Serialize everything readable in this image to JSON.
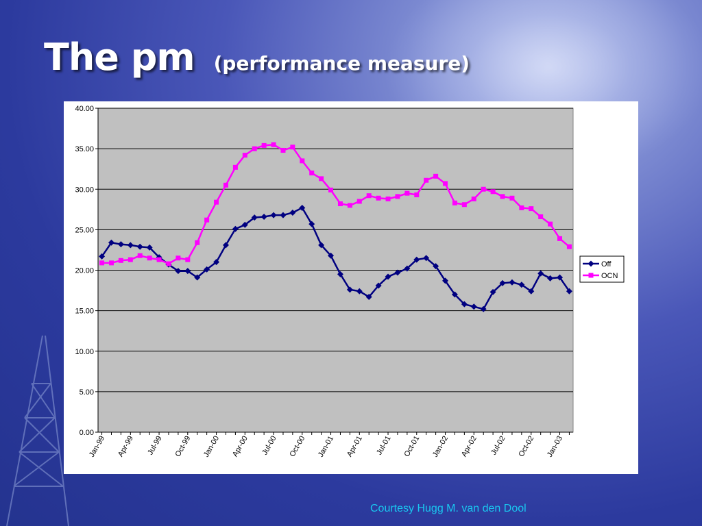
{
  "slide": {
    "title": "The pm",
    "subtitle": "(performance measure)",
    "credit": "Courtesy Hugg M. van den Dool"
  },
  "colors": {
    "background": "#2c3a9e",
    "title_text": "#ffffff",
    "credit_text": "#19c8f0",
    "plot_area": "#c0c0c0",
    "gridline": "#000000"
  },
  "chart_data": {
    "type": "line",
    "title": "",
    "xlabel": "",
    "ylabel": "",
    "ylim": [
      0,
      40
    ],
    "yticks": [
      "0.00",
      "5.00",
      "10.00",
      "15.00",
      "20.00",
      "25.00",
      "30.00",
      "35.00",
      "40.00"
    ],
    "grid": "horizontal",
    "legend_position": "right",
    "x_tick_labels": [
      "Jan-99",
      "Apr-99",
      "Jul-99",
      "Oct-99",
      "Jan-00",
      "Apr-00",
      "Jul-00",
      "Oct-00",
      "Jan-01",
      "Apr-01",
      "Jul-01",
      "Oct-01",
      "Jan-02",
      "Apr-02",
      "Jul-02",
      "Oct-02",
      "Jan-03"
    ],
    "x": [
      "Jan-99",
      "Feb-99",
      "Mar-99",
      "Apr-99",
      "May-99",
      "Jun-99",
      "Jul-99",
      "Aug-99",
      "Sep-99",
      "Oct-99",
      "Nov-99",
      "Dec-99",
      "Jan-00",
      "Feb-00",
      "Mar-00",
      "Apr-00",
      "May-00",
      "Jun-00",
      "Jul-00",
      "Aug-00",
      "Sep-00",
      "Oct-00",
      "Nov-00",
      "Dec-00",
      "Jan-01",
      "Feb-01",
      "Mar-01",
      "Apr-01",
      "May-01",
      "Jun-01",
      "Jul-01",
      "Aug-01",
      "Sep-01",
      "Oct-01",
      "Nov-01",
      "Dec-01",
      "Jan-02",
      "Feb-02",
      "Mar-02",
      "Apr-02",
      "May-02",
      "Jun-02",
      "Jul-02",
      "Aug-02",
      "Sep-02",
      "Oct-02",
      "Nov-02",
      "Dec-02",
      "Jan-03",
      "Feb-03"
    ],
    "series": [
      {
        "name": "Off",
        "color": "#000080",
        "marker": "diamond",
        "values": [
          21.7,
          23.4,
          23.2,
          23.1,
          22.9,
          22.8,
          21.6,
          20.7,
          19.9,
          19.9,
          19.1,
          20.1,
          21.0,
          23.1,
          25.1,
          25.6,
          26.5,
          26.6,
          26.8,
          26.8,
          27.1,
          27.7,
          25.7,
          23.1,
          21.8,
          19.5,
          17.6,
          17.4,
          16.7,
          18.1,
          19.2,
          19.7,
          20.2,
          21.3,
          21.5,
          20.5,
          18.7,
          17.0,
          15.8,
          15.5,
          15.2,
          17.3,
          18.4,
          18.5,
          18.2,
          17.4,
          19.6,
          19.0,
          19.1,
          17.4
        ]
      },
      {
        "name": "OCN",
        "color": "#ff00ff",
        "marker": "square",
        "values": [
          20.9,
          20.9,
          21.2,
          21.3,
          21.8,
          21.5,
          21.3,
          20.8,
          21.5,
          21.3,
          23.4,
          26.2,
          28.4,
          30.5,
          32.7,
          34.2,
          35.0,
          35.4,
          35.5,
          34.8,
          35.2,
          33.5,
          32.0,
          31.3,
          29.9,
          28.2,
          28.0,
          28.5,
          29.2,
          28.9,
          28.8,
          29.1,
          29.5,
          29.3,
          31.1,
          31.6,
          30.7,
          28.3,
          28.1,
          28.8,
          30.0,
          29.7,
          29.1,
          28.9,
          27.7,
          27.6,
          26.6,
          25.7,
          23.9,
          22.9
        ]
      }
    ]
  }
}
